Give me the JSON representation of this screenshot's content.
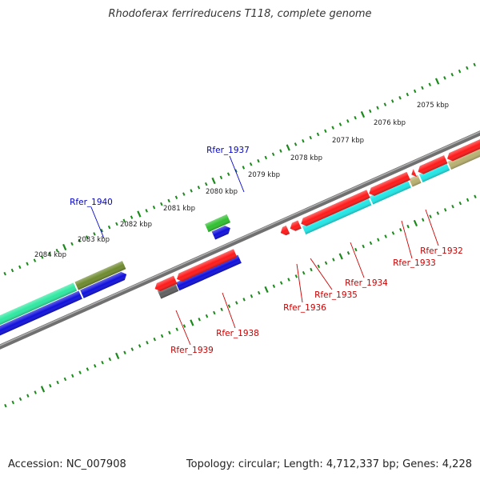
{
  "title": "Rhodoferax ferrireducens T118, complete genome",
  "footer": {
    "accession": "Accession: NC_007908",
    "stats": "Topology: circular; Length: 4,712,337 bp; Genes: 4,228"
  },
  "colors": {
    "backbone": "#808080",
    "tick": "#1a8a1a",
    "label_plus": "#0000cc",
    "label_minus": "#cc0000",
    "gene_red": "#ff1a1a",
    "gene_blue": "#1010dd",
    "gene_cyan": "#22e6e6",
    "gene_teal": "#2ee8a0",
    "gene_olive": "#6e8a2e",
    "gene_khaki": "#b8b070",
    "gene_green": "#30c030",
    "gene_gray": "#606060"
  },
  "scale_labels": [
    "2075 kbp",
    "2076 kbp",
    "2077 kbp",
    "2078 kbp",
    "2079 kbp",
    "2080 kbp",
    "2081 kbp",
    "2082 kbp",
    "2083 kbp",
    "2084 kbp"
  ],
  "gene_labels": [
    {
      "id": "Rfer_1940",
      "strand": "plus"
    },
    {
      "id": "Rfer_1937",
      "strand": "plus"
    },
    {
      "id": "Rfer_1939",
      "strand": "minus"
    },
    {
      "id": "Rfer_1938",
      "strand": "minus"
    },
    {
      "id": "Rfer_1936",
      "strand": "minus"
    },
    {
      "id": "Rfer_1935",
      "strand": "minus"
    },
    {
      "id": "Rfer_1934",
      "strand": "minus"
    },
    {
      "id": "Rfer_1933",
      "strand": "minus"
    },
    {
      "id": "Rfer_1932",
      "strand": "minus"
    }
  ]
}
